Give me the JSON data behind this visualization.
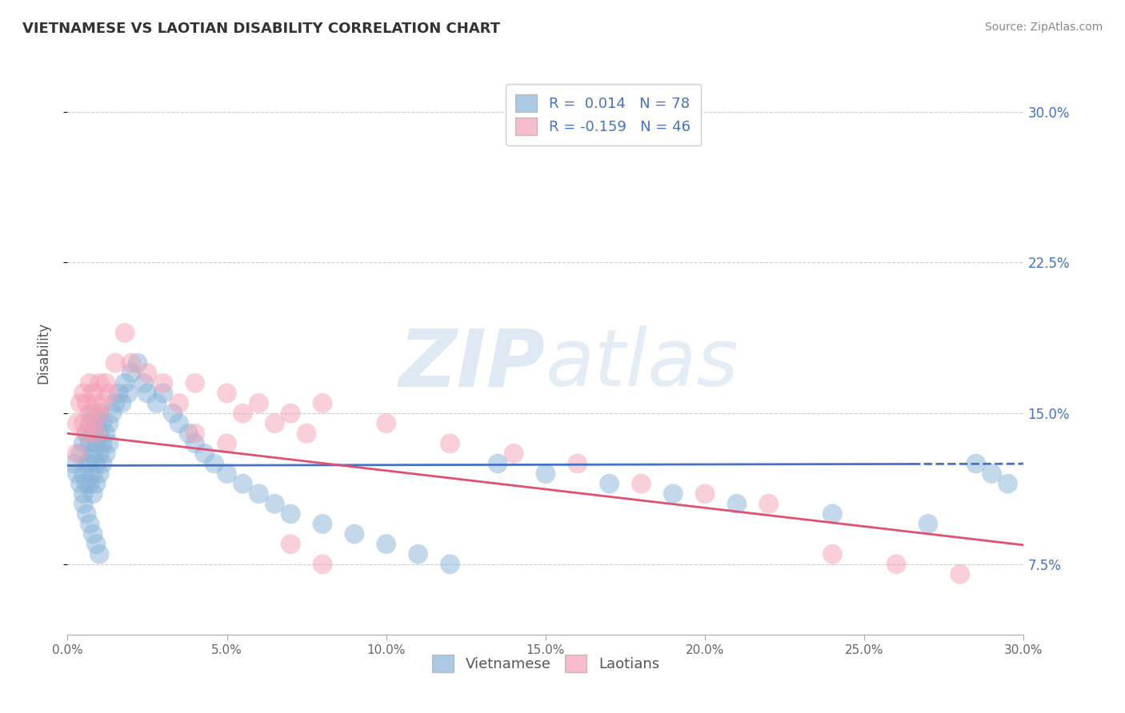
{
  "title": "VIETNAMESE VS LAOTIAN DISABILITY CORRELATION CHART",
  "source": "Source: ZipAtlas.com",
  "ylabel": "Disability",
  "xlim": [
    0.0,
    0.3
  ],
  "ylim": [
    0.04,
    0.32
  ],
  "yticks": [
    0.075,
    0.15,
    0.225,
    0.3
  ],
  "ytick_labels": [
    "7.5%",
    "15.0%",
    "22.5%",
    "30.0%"
  ],
  "xticks": [
    0.0,
    0.05,
    0.1,
    0.15,
    0.2,
    0.25,
    0.3
  ],
  "xtick_labels": [
    "0.0%",
    "5.0%",
    "10.0%",
    "15.0%",
    "20.0%",
    "25.0%",
    "30.0%"
  ],
  "vietnamese_color": "#89b4d9",
  "laotian_color": "#f4a0b5",
  "trend_blue": "#4472c4",
  "trend_pink": "#e05070",
  "legend_R1": "R =  0.014   N = 78",
  "legend_R2": "R = -0.159   N = 46",
  "viet_R": 0.014,
  "lao_R": -0.159,
  "viet_intercept": 0.124,
  "viet_slope": 0.003,
  "lao_intercept": 0.14,
  "lao_slope": -0.185,
  "vietnamese_x": [
    0.002,
    0.003,
    0.004,
    0.004,
    0.005,
    0.005,
    0.005,
    0.006,
    0.006,
    0.006,
    0.007,
    0.007,
    0.007,
    0.007,
    0.008,
    0.008,
    0.008,
    0.008,
    0.008,
    0.009,
    0.009,
    0.009,
    0.009,
    0.01,
    0.01,
    0.01,
    0.01,
    0.011,
    0.011,
    0.011,
    0.012,
    0.012,
    0.013,
    0.013,
    0.014,
    0.015,
    0.016,
    0.017,
    0.018,
    0.019,
    0.02,
    0.022,
    0.024,
    0.025,
    0.028,
    0.03,
    0.033,
    0.035,
    0.038,
    0.04,
    0.043,
    0.046,
    0.05,
    0.055,
    0.06,
    0.065,
    0.07,
    0.08,
    0.09,
    0.1,
    0.11,
    0.12,
    0.135,
    0.15,
    0.17,
    0.19,
    0.21,
    0.24,
    0.27,
    0.285,
    0.29,
    0.295,
    0.005,
    0.006,
    0.007,
    0.008,
    0.009,
    0.01
  ],
  "vietnamese_y": [
    0.125,
    0.12,
    0.13,
    0.115,
    0.135,
    0.12,
    0.11,
    0.14,
    0.125,
    0.115,
    0.145,
    0.135,
    0.125,
    0.115,
    0.15,
    0.14,
    0.13,
    0.12,
    0.11,
    0.145,
    0.135,
    0.125,
    0.115,
    0.15,
    0.14,
    0.13,
    0.12,
    0.145,
    0.135,
    0.125,
    0.14,
    0.13,
    0.145,
    0.135,
    0.15,
    0.155,
    0.16,
    0.155,
    0.165,
    0.16,
    0.17,
    0.175,
    0.165,
    0.16,
    0.155,
    0.16,
    0.15,
    0.145,
    0.14,
    0.135,
    0.13,
    0.125,
    0.12,
    0.115,
    0.11,
    0.105,
    0.1,
    0.095,
    0.09,
    0.085,
    0.08,
    0.075,
    0.125,
    0.12,
    0.115,
    0.11,
    0.105,
    0.1,
    0.095,
    0.125,
    0.12,
    0.115,
    0.105,
    0.1,
    0.095,
    0.09,
    0.085,
    0.08
  ],
  "laotian_x": [
    0.003,
    0.003,
    0.004,
    0.005,
    0.005,
    0.006,
    0.006,
    0.007,
    0.007,
    0.008,
    0.008,
    0.009,
    0.009,
    0.01,
    0.01,
    0.011,
    0.012,
    0.013,
    0.015,
    0.018,
    0.02,
    0.025,
    0.03,
    0.04,
    0.05,
    0.06,
    0.07,
    0.08,
    0.1,
    0.12,
    0.14,
    0.16,
    0.18,
    0.2,
    0.22,
    0.24,
    0.26,
    0.28,
    0.07,
    0.08,
    0.035,
    0.04,
    0.05,
    0.055,
    0.065,
    0.075
  ],
  "laotian_y": [
    0.145,
    0.13,
    0.155,
    0.16,
    0.145,
    0.155,
    0.14,
    0.165,
    0.15,
    0.16,
    0.145,
    0.155,
    0.14,
    0.165,
    0.15,
    0.155,
    0.165,
    0.16,
    0.175,
    0.19,
    0.175,
    0.17,
    0.165,
    0.14,
    0.135,
    0.155,
    0.15,
    0.155,
    0.145,
    0.135,
    0.13,
    0.125,
    0.115,
    0.11,
    0.105,
    0.08,
    0.075,
    0.07,
    0.085,
    0.075,
    0.155,
    0.165,
    0.16,
    0.15,
    0.145,
    0.14
  ]
}
